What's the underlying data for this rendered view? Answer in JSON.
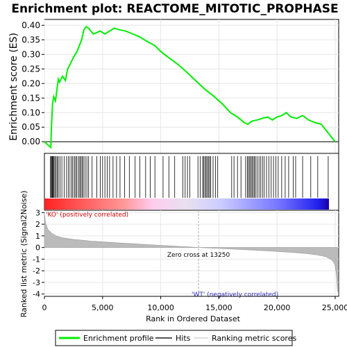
{
  "title": "Enrichment plot: REACTOME_MITOTIC_PROPHASE",
  "top_ylabel": "Enrichment score (ES)",
  "bottom_ylabel": "Ranked list metric (Signal2Noise)",
  "xlabel": "Rank in Ordered Dataset",
  "label_pos": "'KO' (positively correlated)",
  "label_neg": "'WT' (negatively correlated)",
  "zero_cross_label": "Zero cross at 13250",
  "legend": {
    "items": [
      {
        "label": "Enrichment profile"
      },
      {
        "label": "Hits"
      },
      {
        "label": "Ranking metric scores"
      }
    ]
  },
  "colors": {
    "profile": "#00ee00",
    "hits": "#000000",
    "metric": "#bbbbbb",
    "pos_label": "#cc0000",
    "neg_label": "#3333bb"
  },
  "chart_data": {
    "type": "line",
    "x_range": [
      0,
      25300
    ],
    "x_ticks": [
      0,
      5000,
      10000,
      15000,
      20000,
      25000
    ],
    "x_tick_labels": [
      "0",
      "5,000",
      "10,000",
      "15,000",
      "20,000",
      "25,000"
    ],
    "es_ylim": [
      -0.04,
      0.42
    ],
    "es_ticks": [
      0.0,
      0.05,
      0.1,
      0.15,
      0.2,
      0.25,
      0.3,
      0.35,
      0.4
    ],
    "es_tick_labels": [
      "0.00",
      "0.05",
      "0.10",
      "0.15",
      "0.20",
      "0.25",
      "0.30",
      "0.35",
      "0.40"
    ],
    "metric_ylim": [
      -4.2,
      3.2
    ],
    "metric_ticks": [
      -4,
      -3,
      -2,
      -1,
      0,
      1,
      2,
      3
    ],
    "metric_tick_labels": [
      "-4",
      "-3",
      "-2",
      "-1",
      "0",
      "1",
      "2",
      "3"
    ],
    "zero_cross": 13250,
    "enrichment_profile": {
      "x": [
        0,
        550,
        600,
        700,
        800,
        950,
        1200,
        1300,
        1550,
        1800,
        2000,
        2200,
        2500,
        2800,
        3000,
        3200,
        3400,
        3600,
        3800,
        4200,
        4800,
        5200,
        5600,
        6000,
        6400,
        7000,
        7600,
        8200,
        8800,
        9500,
        10000,
        10800,
        11500,
        12200,
        13000,
        13800,
        14600,
        15300,
        16000,
        16600,
        17200,
        17500,
        17800,
        18300,
        18700,
        19200,
        19600,
        20000,
        20400,
        20800,
        21200,
        21700,
        22200,
        22700,
        23300,
        23800,
        24400,
        25000
      ],
      "y": [
        0.0,
        -0.02,
        0.05,
        0.13,
        0.155,
        0.14,
        0.215,
        0.205,
        0.225,
        0.21,
        0.25,
        0.265,
        0.29,
        0.31,
        0.33,
        0.35,
        0.385,
        0.395,
        0.39,
        0.37,
        0.38,
        0.37,
        0.38,
        0.39,
        0.385,
        0.38,
        0.37,
        0.36,
        0.345,
        0.33,
        0.31,
        0.285,
        0.265,
        0.24,
        0.21,
        0.18,
        0.155,
        0.13,
        0.1,
        0.085,
        0.065,
        0.06,
        0.07,
        0.075,
        0.08,
        0.085,
        0.075,
        0.085,
        0.09,
        0.1,
        0.085,
        0.08,
        0.09,
        0.075,
        0.065,
        0.06,
        0.03,
        0.0
      ]
    },
    "hits": [
      520,
      590,
      650,
      700,
      750,
      820,
      900,
      1000,
      1100,
      1200,
      1350,
      1500,
      1700,
      1900,
      2050,
      2200,
      2350,
      2450,
      2600,
      2700,
      2800,
      2950,
      3050,
      3150,
      3250,
      3350,
      3500,
      3650,
      3800,
      4100,
      4500,
      4800,
      5000,
      5200,
      5400,
      5600,
      5900,
      6200,
      6500,
      6900,
      7300,
      7800,
      8200,
      8700,
      9100,
      9500,
      10200,
      10700,
      11200,
      11900,
      12100,
      12300,
      12500,
      13200,
      13400,
      13600,
      13700,
      13800,
      13900,
      14000,
      14100,
      14200,
      14300,
      14500,
      14700,
      14900,
      16100,
      16300,
      16600,
      16900,
      17300,
      17450,
      17550,
      17650,
      17750,
      17850,
      17950,
      18050,
      18150,
      18300,
      18450,
      18600,
      18750,
      18900,
      19100,
      19300,
      19500,
      19700,
      19900,
      20100,
      20400,
      20700,
      21000,
      21400,
      21600,
      22200,
      22900,
      23500,
      24400
    ],
    "metric_profile": {
      "x": [
        0,
        100,
        300,
        600,
        1000,
        1500,
        2500,
        4000,
        6000,
        8000,
        10000,
        12000,
        13250,
        15000,
        17000,
        19000,
        21000,
        22500,
        23500,
        24200,
        24700,
        24950,
        25100,
        25200
      ],
      "y": [
        3.0,
        2.1,
        1.55,
        1.25,
        1.0,
        0.85,
        0.7,
        0.55,
        0.42,
        0.3,
        0.18,
        0.07,
        0.0,
        -0.08,
        -0.18,
        -0.28,
        -0.4,
        -0.52,
        -0.65,
        -0.8,
        -1.05,
        -1.4,
        -2.2,
        -3.8
      ]
    }
  }
}
